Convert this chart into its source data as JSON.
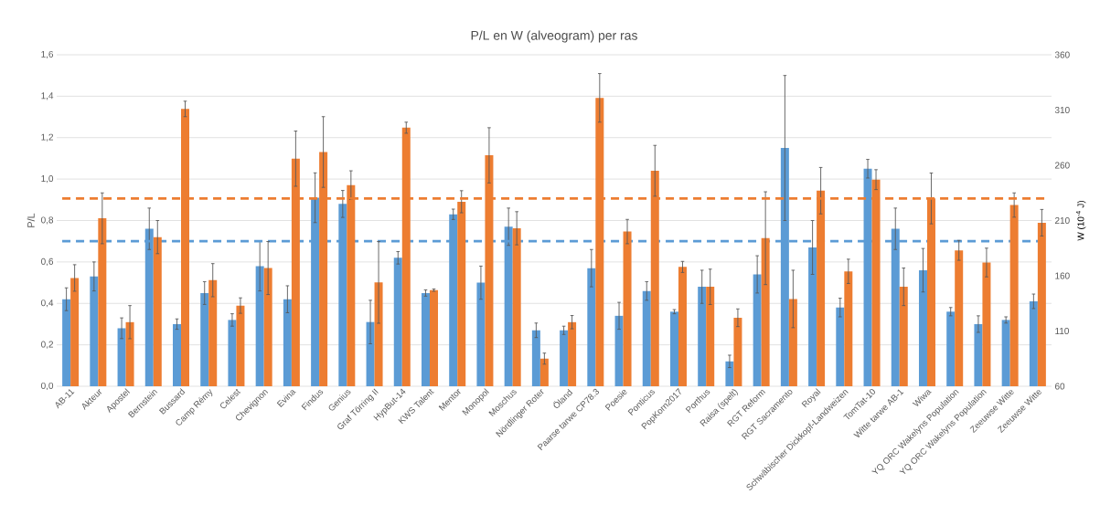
{
  "chart_data": {
    "type": "bar",
    "title": "P/L en W (alveogram) per ras",
    "ylabel": "P/L",
    "y2label": "W (10$^{-4}$ J)",
    "categories": [
      "AB-11",
      "Akteur",
      "Apostel",
      "Bernstein",
      "Bussard",
      "Camp Rémy",
      "Celest",
      "Chevignon",
      "Evina",
      "Findus",
      "Genius",
      "Graf Törring II",
      "HypBut-14",
      "KWS Talent",
      "Mentor",
      "Monopol",
      "Moschus",
      "Nördlinger Roter",
      "Öland",
      "Paarse tarwe CP78.3",
      "Poesie",
      "Ponticus",
      "PopKorn2017",
      "Porthus",
      "Raisa (spelt)",
      "RGT Reform",
      "RGT Sacramento",
      "Royal",
      "Schwäbischer Dickkopf-Landweizen",
      "TomTat-10",
      "Witte tarwe AB-1",
      "Wiwa",
      "YQ ORC Wakelyns Population",
      "YQ ORC Wakelyns Population",
      "Zeeuwse Witte",
      "Zeeuwse Witte"
    ],
    "series": [
      {
        "color": "#5b9bd5",
        "values": [
          0.42,
          0.53,
          0.28,
          0.76,
          0.3,
          0.45,
          0.32,
          0.58,
          0.42,
          0.91,
          0.88,
          0.31,
          0.62,
          0.45,
          0.83,
          0.5,
          0.77,
          0.27,
          0.27,
          0.57,
          0.34,
          0.46,
          0.36,
          0.48,
          0.12,
          0.54,
          1.15,
          0.67,
          0.38,
          1.05,
          0.76,
          0.56,
          0.36,
          0.3,
          0.32,
          0.41
        ],
        "errors": [
          0.055,
          0.07,
          0.05,
          0.1,
          0.025,
          0.055,
          0.03,
          0.12,
          0.065,
          0.12,
          0.065,
          0.105,
          0.03,
          0.015,
          0.025,
          0.08,
          0.09,
          0.035,
          0.02,
          0.09,
          0.065,
          0.045,
          0.01,
          0.08,
          0.03,
          0.09,
          0.35,
          0.13,
          0.045,
          0.045,
          0.1,
          0.105,
          0.02,
          0.04,
          0.015,
          0.035
        ]
      },
      {
        "color": "#ed7d31",
        "axis": "y2",
        "values": [
          158,
          212,
          118,
          195,
          311,
          156,
          133,
          167,
          266,
          272,
          242,
          154,
          294,
          147,
          227,
          269,
          203,
          85,
          118,
          321,
          200,
          255,
          168,
          150,
          122,
          194,
          139,
          237,
          164,
          247,
          150,
          230,
          183,
          172,
          224,
          208
        ],
        "errors": [
          12,
          23,
          15,
          15,
          7,
          15,
          7,
          24,
          25,
          32,
          13,
          37,
          5,
          1,
          10,
          25,
          15,
          5,
          6,
          22,
          11,
          23,
          5,
          16,
          8,
          42,
          26,
          21,
          11,
          9,
          17,
          23,
          9,
          13,
          11,
          12
        ]
      }
    ],
    "ylim": [
      0,
      1.6
    ],
    "yticks": [
      {
        "value": 0,
        "label": "0,0"
      },
      {
        "value": 0.2,
        "label": "0,2"
      },
      {
        "value": 0.4,
        "label": "0,4"
      },
      {
        "value": 0.6,
        "label": "0,6"
      },
      {
        "value": 0.8,
        "label": "0,8"
      },
      {
        "value": 1.0,
        "label": "1,0"
      },
      {
        "value": 1.2,
        "label": "1,2"
      },
      {
        "value": 1.4,
        "label": "1,4"
      },
      {
        "value": 1.6,
        "label": "1,6"
      }
    ],
    "y2lim": [
      60,
      360
    ],
    "y2ticks": [
      60,
      110,
      160,
      210,
      260,
      310,
      360
    ],
    "ref_lines": [
      {
        "axis": "y",
        "value": 0.7,
        "color": "#5b9bd5",
        "line_style": "dashed"
      },
      {
        "axis": "y2",
        "value": 230,
        "color": "#ed7d31",
        "line_style": "dashed"
      }
    ],
    "grid": "y"
  }
}
